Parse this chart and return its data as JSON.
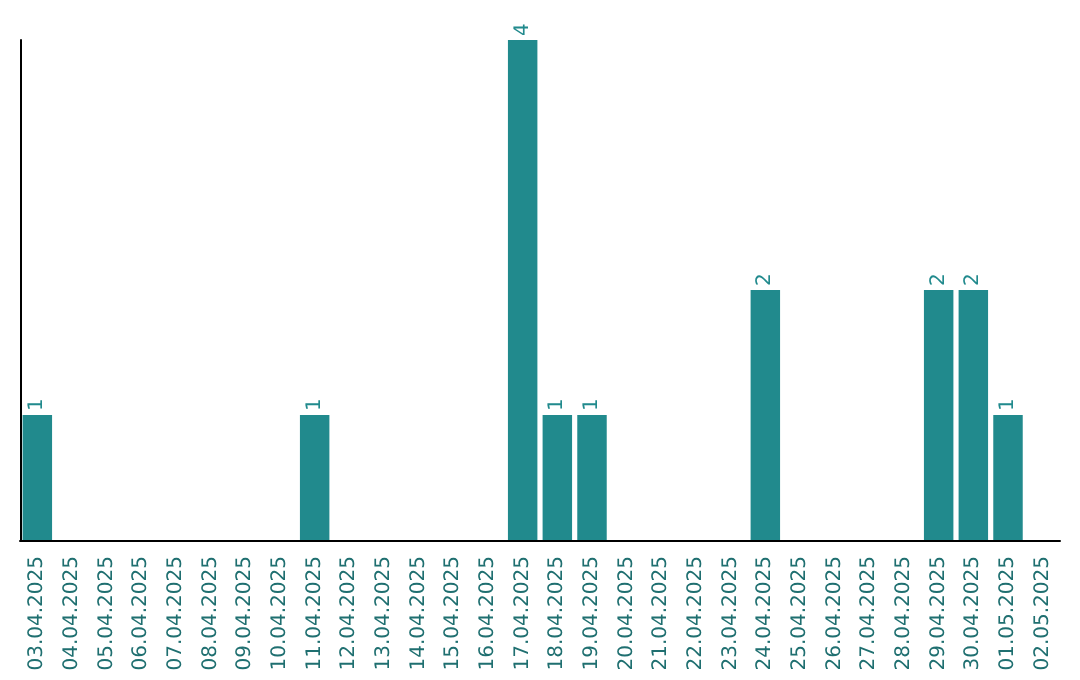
{
  "chart_data": {
    "type": "bar",
    "categories": [
      "03.04.2025",
      "04.04.2025",
      "05.04.2025",
      "06.04.2025",
      "07.04.2025",
      "08.04.2025",
      "09.04.2025",
      "10.04.2025",
      "11.04.2025",
      "12.04.2025",
      "13.04.2025",
      "14.04.2025",
      "15.04.2025",
      "16.04.2025",
      "17.04.2025",
      "18.04.2025",
      "19.04.2025",
      "20.04.2025",
      "21.04.2025",
      "22.04.2025",
      "23.04.2025",
      "24.04.2025",
      "25.04.2025",
      "26.04.2025",
      "27.04.2025",
      "28.04.2025",
      "29.04.2025",
      "30.04.2025",
      "01.05.2025",
      "02.05.2025"
    ],
    "values": [
      1,
      0,
      0,
      0,
      0,
      0,
      0,
      0,
      1,
      0,
      0,
      0,
      0,
      0,
      4,
      1,
      1,
      0,
      0,
      0,
      0,
      2,
      0,
      0,
      0,
      0,
      2,
      2,
      1,
      0
    ],
    "value_labels": [
      "1",
      null,
      null,
      null,
      null,
      null,
      null,
      null,
      "1",
      null,
      null,
      null,
      null,
      null,
      "4",
      "1",
      "1",
      null,
      null,
      null,
      null,
      "2",
      null,
      null,
      null,
      null,
      "2",
      "2",
      "1",
      null
    ],
    "color": "#218a8d",
    "tick_labels": "x"
  }
}
